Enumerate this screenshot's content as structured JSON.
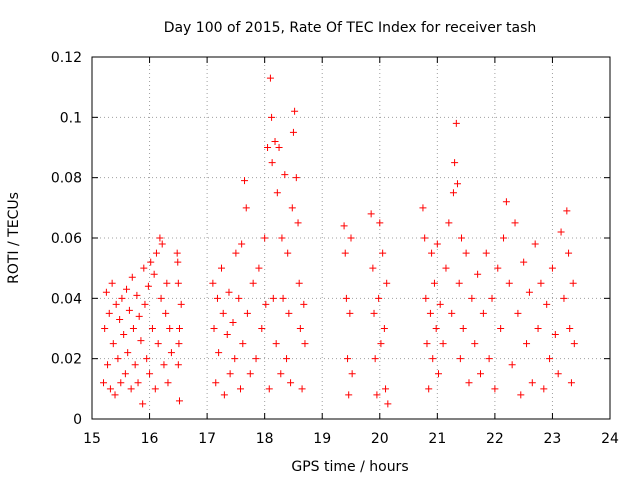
{
  "chart_data": {
    "type": "scatter",
    "title": "Day 100 of 2015, Rate Of TEC Index for receiver tash",
    "xlabel": "GPS time / hours",
    "ylabel": "ROTI / TECUs",
    "xlim": [
      15,
      24
    ],
    "ylim": [
      0,
      0.12
    ],
    "xticks": [
      15,
      16,
      17,
      18,
      19,
      20,
      21,
      22,
      23,
      24
    ],
    "xtick_labels": [
      "15",
      "16",
      "17",
      "18",
      "19",
      "20",
      "21",
      "22",
      "23",
      "24"
    ],
    "yticks": [
      0,
      0.02,
      0.04,
      0.06,
      0.08,
      0.1,
      0.12
    ],
    "ytick_labels": [
      "0",
      "0.02",
      "0.04",
      "0.06",
      "0.08",
      "0.1",
      "0.12"
    ],
    "grid": true,
    "marker": "+",
    "color": "#ff0000",
    "series": [
      {
        "name": "ROTI",
        "points": [
          [
            15.2,
            0.012
          ],
          [
            15.22,
            0.03
          ],
          [
            15.25,
            0.042
          ],
          [
            15.27,
            0.018
          ],
          [
            15.3,
            0.035
          ],
          [
            15.32,
            0.01
          ],
          [
            15.35,
            0.045
          ],
          [
            15.37,
            0.025
          ],
          [
            15.4,
            0.008
          ],
          [
            15.42,
            0.038
          ],
          [
            15.45,
            0.02
          ],
          [
            15.48,
            0.033
          ],
          [
            15.5,
            0.012
          ],
          [
            15.52,
            0.04
          ],
          [
            15.55,
            0.028
          ],
          [
            15.58,
            0.015
          ],
          [
            15.6,
            0.043
          ],
          [
            15.62,
            0.022
          ],
          [
            15.65,
            0.036
          ],
          [
            15.68,
            0.01
          ],
          [
            15.7,
            0.047
          ],
          [
            15.72,
            0.03
          ],
          [
            15.75,
            0.018
          ],
          [
            15.78,
            0.041
          ],
          [
            15.8,
            0.012
          ],
          [
            15.82,
            0.034
          ],
          [
            15.85,
            0.026
          ],
          [
            15.88,
            0.005
          ],
          [
            15.9,
            0.05
          ],
          [
            15.92,
            0.038
          ],
          [
            15.95,
            0.02
          ],
          [
            15.98,
            0.044
          ],
          [
            16.0,
            0.015
          ],
          [
            16.02,
            0.052
          ],
          [
            16.05,
            0.03
          ],
          [
            16.08,
            0.048
          ],
          [
            16.1,
            0.01
          ],
          [
            16.12,
            0.055
          ],
          [
            16.15,
            0.025
          ],
          [
            16.18,
            0.06
          ],
          [
            16.2,
            0.04
          ],
          [
            16.22,
            0.058
          ],
          [
            16.25,
            0.018
          ],
          [
            16.28,
            0.035
          ],
          [
            16.3,
            0.045
          ],
          [
            16.32,
            0.012
          ],
          [
            16.35,
            0.03
          ],
          [
            16.38,
            0.022
          ],
          [
            16.48,
            0.055
          ],
          [
            16.5,
            0.045
          ],
          [
            16.52,
            0.03
          ],
          [
            16.5,
            0.018
          ],
          [
            16.52,
            0.006
          ],
          [
            16.55,
            0.038
          ],
          [
            16.49,
            0.052
          ],
          [
            16.51,
            0.025
          ],
          [
            17.1,
            0.045
          ],
          [
            17.12,
            0.03
          ],
          [
            17.15,
            0.012
          ],
          [
            17.18,
            0.04
          ],
          [
            17.2,
            0.022
          ],
          [
            17.25,
            0.05
          ],
          [
            17.28,
            0.035
          ],
          [
            17.3,
            0.008
          ],
          [
            17.35,
            0.028
          ],
          [
            17.38,
            0.042
          ],
          [
            17.4,
            0.015
          ],
          [
            17.45,
            0.032
          ],
          [
            17.48,
            0.02
          ],
          [
            17.5,
            0.055
          ],
          [
            17.55,
            0.04
          ],
          [
            17.58,
            0.01
          ],
          [
            17.6,
            0.058
          ],
          [
            17.62,
            0.025
          ],
          [
            17.65,
            0.079
          ],
          [
            17.68,
            0.07
          ],
          [
            17.7,
            0.035
          ],
          [
            17.75,
            0.015
          ],
          [
            17.8,
            0.045
          ],
          [
            17.85,
            0.02
          ],
          [
            17.9,
            0.05
          ],
          [
            17.95,
            0.03
          ],
          [
            18.0,
            0.06
          ],
          [
            18.02,
            0.038
          ],
          [
            18.05,
            0.09
          ],
          [
            18.08,
            0.01
          ],
          [
            18.1,
            0.113
          ],
          [
            18.12,
            0.1
          ],
          [
            18.13,
            0.085
          ],
          [
            18.15,
            0.04
          ],
          [
            18.18,
            0.092
          ],
          [
            18.2,
            0.025
          ],
          [
            18.22,
            0.075
          ],
          [
            18.25,
            0.09
          ],
          [
            18.28,
            0.015
          ],
          [
            18.3,
            0.06
          ],
          [
            18.32,
            0.04
          ],
          [
            18.35,
            0.081
          ],
          [
            18.38,
            0.02
          ],
          [
            18.4,
            0.055
          ],
          [
            18.42,
            0.035
          ],
          [
            18.45,
            0.012
          ],
          [
            18.48,
            0.07
          ],
          [
            18.5,
            0.095
          ],
          [
            18.52,
            0.102
          ],
          [
            18.55,
            0.08
          ],
          [
            18.58,
            0.065
          ],
          [
            18.6,
            0.045
          ],
          [
            18.62,
            0.03
          ],
          [
            18.65,
            0.01
          ],
          [
            18.68,
            0.038
          ],
          [
            18.7,
            0.025
          ],
          [
            19.38,
            0.064
          ],
          [
            19.4,
            0.055
          ],
          [
            19.42,
            0.04
          ],
          [
            19.44,
            0.02
          ],
          [
            19.46,
            0.008
          ],
          [
            19.48,
            0.035
          ],
          [
            19.5,
            0.06
          ],
          [
            19.52,
            0.015
          ],
          [
            19.85,
            0.068
          ],
          [
            19.88,
            0.05
          ],
          [
            19.9,
            0.035
          ],
          [
            19.92,
            0.02
          ],
          [
            19.95,
            0.008
          ],
          [
            19.98,
            0.04
          ],
          [
            20.0,
            0.065
          ],
          [
            20.02,
            0.025
          ],
          [
            20.05,
            0.055
          ],
          [
            20.08,
            0.03
          ],
          [
            20.1,
            0.01
          ],
          [
            20.12,
            0.045
          ],
          [
            20.14,
            0.005
          ],
          [
            20.75,
            0.07
          ],
          [
            20.78,
            0.06
          ],
          [
            20.8,
            0.04
          ],
          [
            20.82,
            0.025
          ],
          [
            20.85,
            0.01
          ],
          [
            20.88,
            0.035
          ],
          [
            20.9,
            0.055
          ],
          [
            20.92,
            0.02
          ],
          [
            20.95,
            0.045
          ],
          [
            20.98,
            0.03
          ],
          [
            21.0,
            0.058
          ],
          [
            21.02,
            0.015
          ],
          [
            21.05,
            0.038
          ],
          [
            21.1,
            0.025
          ],
          [
            21.15,
            0.05
          ],
          [
            21.2,
            0.065
          ],
          [
            21.25,
            0.035
          ],
          [
            21.28,
            0.075
          ],
          [
            21.3,
            0.085
          ],
          [
            21.33,
            0.098
          ],
          [
            21.35,
            0.078
          ],
          [
            21.38,
            0.045
          ],
          [
            21.4,
            0.02
          ],
          [
            21.42,
            0.06
          ],
          [
            21.45,
            0.03
          ],
          [
            21.5,
            0.055
          ],
          [
            21.55,
            0.012
          ],
          [
            21.6,
            0.04
          ],
          [
            21.65,
            0.025
          ],
          [
            21.7,
            0.048
          ],
          [
            21.75,
            0.015
          ],
          [
            21.8,
            0.035
          ],
          [
            21.85,
            0.055
          ],
          [
            21.9,
            0.02
          ],
          [
            21.95,
            0.04
          ],
          [
            22.0,
            0.01
          ],
          [
            22.05,
            0.05
          ],
          [
            22.1,
            0.03
          ],
          [
            22.15,
            0.06
          ],
          [
            22.2,
            0.072
          ],
          [
            22.25,
            0.045
          ],
          [
            22.3,
            0.018
          ],
          [
            22.35,
            0.065
          ],
          [
            22.4,
            0.035
          ],
          [
            22.45,
            0.008
          ],
          [
            22.5,
            0.052
          ],
          [
            22.55,
            0.025
          ],
          [
            22.6,
            0.042
          ],
          [
            22.65,
            0.012
          ],
          [
            22.7,
            0.058
          ],
          [
            22.75,
            0.03
          ],
          [
            22.8,
            0.045
          ],
          [
            22.85,
            0.01
          ],
          [
            22.9,
            0.038
          ],
          [
            22.95,
            0.02
          ],
          [
            23.0,
            0.05
          ],
          [
            23.05,
            0.028
          ],
          [
            23.1,
            0.015
          ],
          [
            23.15,
            0.062
          ],
          [
            23.2,
            0.04
          ],
          [
            23.25,
            0.069
          ],
          [
            23.28,
            0.055
          ],
          [
            23.3,
            0.03
          ],
          [
            23.33,
            0.012
          ],
          [
            23.36,
            0.045
          ],
          [
            23.38,
            0.025
          ]
        ]
      }
    ]
  }
}
